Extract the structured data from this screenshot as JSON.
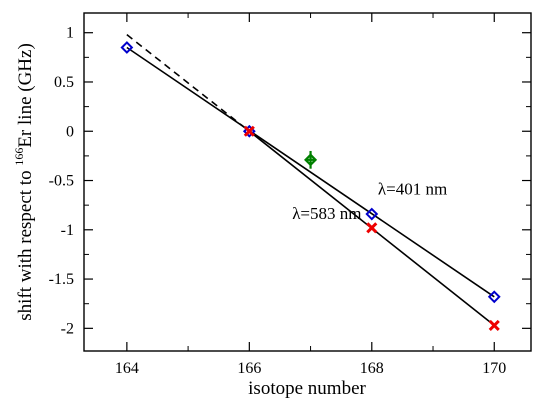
{
  "chart_data": {
    "type": "scatter",
    "xlabel": "isotope number",
    "ylabel_prefix": "shift with respect to ",
    "ylabel_sup": "166",
    "ylabel_suffix": "Er line (GHz)",
    "xlim": [
      163.3,
      170.6
    ],
    "ylim": [
      -2.23,
      1.2
    ],
    "x_ticks": [
      164,
      166,
      168,
      170
    ],
    "x_tick_labels": [
      "164",
      "166",
      "168",
      "170"
    ],
    "y_ticks": [
      1,
      0.5,
      0,
      -0.5,
      -1,
      -1.5,
      -2
    ],
    "y_tick_labels": [
      "1",
      "0.5",
      "0",
      "-0.5",
      "-1",
      "-1.5",
      "-2"
    ],
    "series": [
      {
        "marker": "diamond-open",
        "color": "#0000cc",
        "points": [
          [
            164,
            0.85
          ],
          [
            166,
            0.0
          ],
          [
            168,
            -0.84
          ],
          [
            170,
            -1.68
          ]
        ]
      },
      {
        "marker": "x",
        "color": "#ee0000",
        "points": [
          [
            166,
            0.0
          ],
          [
            168,
            -0.98
          ],
          [
            170,
            -1.97
          ]
        ]
      },
      {
        "marker": "diamond-plus",
        "color": "#008000",
        "points": [
          [
            167,
            -0.29
          ]
        ],
        "error_y": [
          0.09
        ]
      }
    ],
    "lines": [
      {
        "style": "solid",
        "x": [
          164,
          170
        ],
        "y": [
          0.85,
          -1.68
        ]
      },
      {
        "style": "solid",
        "x": [
          166,
          170
        ],
        "y": [
          0.0,
          -1.97
        ]
      },
      {
        "style": "dashed",
        "x": [
          164,
          166
        ],
        "y": [
          0.98,
          0.0
        ]
      }
    ],
    "annotations": [
      {
        "text": "λ=401 nm",
        "x": 168.1,
        "y": -0.64
      },
      {
        "text": "λ=583 nm",
        "x": 166.7,
        "y": -0.89
      }
    ]
  }
}
